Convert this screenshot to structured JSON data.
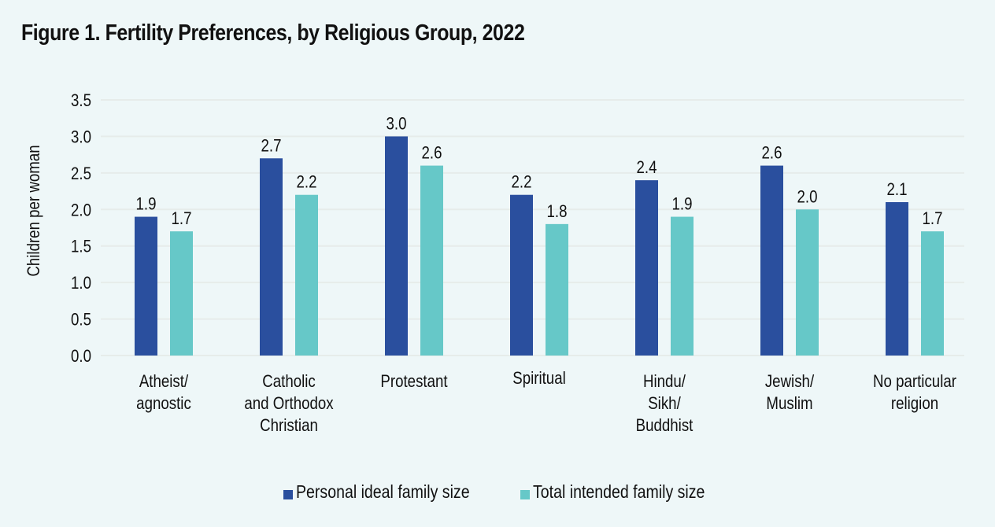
{
  "title": "Figure 1. Fertility Preferences, by Religious Group, 2022",
  "colors": {
    "background": "#eef7f8",
    "series_personal": "#2a4f9e",
    "series_intended": "#66c8c8",
    "gridline": "#e6ecea"
  },
  "chart_data": {
    "type": "bar",
    "title": "Figure 1. Fertility Preferences, by Religious Group, 2022",
    "xlabel": "",
    "ylabel": "Children per woman",
    "ylim": [
      0,
      3.5
    ],
    "yticks": [
      "0.0",
      "0.5",
      "1.0",
      "1.5",
      "2.0",
      "2.5",
      "3.0",
      "3.5"
    ],
    "grid": true,
    "legend_position": "bottom-center",
    "categories": [
      [
        "Atheist/",
        "agnostic"
      ],
      [
        "Catholic",
        "and Orthodox",
        "Christian"
      ],
      [
        "Protestant"
      ],
      [
        "Spiritual"
      ],
      [
        "Hindu/",
        "Sikh/",
        "Buddhist"
      ],
      [
        "Jewish/",
        "Muslim"
      ],
      [
        "No particular",
        "religion"
      ]
    ],
    "series": [
      {
        "name": "Personal ideal family size",
        "color": "#2a4f9e",
        "values": [
          1.9,
          2.7,
          3.0,
          2.2,
          2.4,
          2.6,
          2.1
        ],
        "labels": [
          "1.9",
          "2.7",
          "3.0",
          "2.2",
          "2.4",
          "2.6",
          "2.1"
        ]
      },
      {
        "name": "Total intended family size",
        "color": "#66c8c8",
        "values": [
          1.7,
          2.2,
          2.6,
          1.8,
          1.9,
          2.0,
          1.7
        ],
        "labels": [
          "1.7",
          "2.2",
          "2.6",
          "1.8",
          "1.9",
          "2.0",
          "1.7"
        ]
      }
    ]
  },
  "legend": [
    {
      "label": "Personal ideal family size",
      "color": "#2a4f9e"
    },
    {
      "label": "Total intended family size",
      "color": "#66c8c8"
    }
  ]
}
